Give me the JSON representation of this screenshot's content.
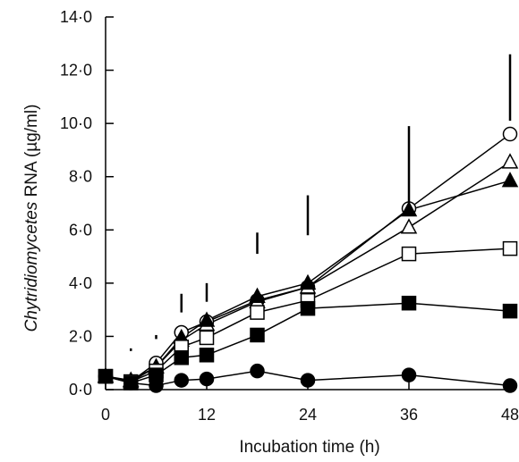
{
  "chart_data": {
    "type": "line",
    "xlabel": "Incubation time (h)",
    "ylabel_italic": "Chytridiomycetes",
    "ylabel_rest": " RNA (µg/ml)",
    "xlim": [
      0,
      48
    ],
    "ylim": [
      0,
      14
    ],
    "x_ticks": [
      0,
      12,
      24,
      36,
      48
    ],
    "x_tick_labels": [
      "0",
      "12",
      "24",
      "36",
      "48"
    ],
    "y_ticks": [
      0,
      2,
      4,
      6,
      8,
      10,
      12,
      14
    ],
    "y_tick_labels": [
      "0·0",
      "2·0",
      "4·0",
      "6·0",
      "8·0",
      "10·0",
      "12·0",
      "14·0"
    ],
    "grid": false,
    "x": [
      0,
      3,
      6,
      9,
      12,
      18,
      24,
      36,
      48
    ],
    "series": [
      {
        "marker": "circle-open",
        "values": [
          0.5,
          0.3,
          1.0,
          2.15,
          2.55,
          3.35,
          3.85,
          6.8,
          9.6
        ]
      },
      {
        "marker": "triangle-open",
        "values": [
          0.5,
          0.3,
          0.85,
          1.85,
          2.45,
          3.3,
          3.85,
          6.1,
          8.55
        ]
      },
      {
        "marker": "triangle-filled",
        "values": [
          0.5,
          0.35,
          0.85,
          1.95,
          2.6,
          3.5,
          4.0,
          6.75,
          7.85
        ]
      },
      {
        "marker": "square-open",
        "values": [
          0.5,
          0.3,
          0.7,
          1.6,
          1.95,
          2.9,
          3.35,
          5.1,
          5.3
        ]
      },
      {
        "marker": "square-filled",
        "values": [
          0.5,
          0.25,
          0.55,
          1.2,
          1.3,
          2.05,
          3.05,
          3.25,
          2.95
        ]
      },
      {
        "marker": "circle-filled",
        "values": [
          0.5,
          0.25,
          0.15,
          0.35,
          0.4,
          0.7,
          0.35,
          0.55,
          0.15
        ]
      }
    ],
    "error_bars": [
      {
        "x": 3,
        "y_low": 1.45,
        "y_high": 1.55
      },
      {
        "x": 6,
        "y_low": 1.9,
        "y_high": 2.05
      },
      {
        "x": 9,
        "y_low": 2.9,
        "y_high": 3.6
      },
      {
        "x": 12,
        "y_low": 3.3,
        "y_high": 4.0
      },
      {
        "x": 18,
        "y_low": 5.1,
        "y_high": 5.9
      },
      {
        "x": 24,
        "y_low": 5.8,
        "y_high": 7.3
      },
      {
        "x": 36,
        "y_low": 7.0,
        "y_high": 9.9
      },
      {
        "x": 48,
        "y_low": 10.1,
        "y_high": 12.6
      }
    ]
  }
}
